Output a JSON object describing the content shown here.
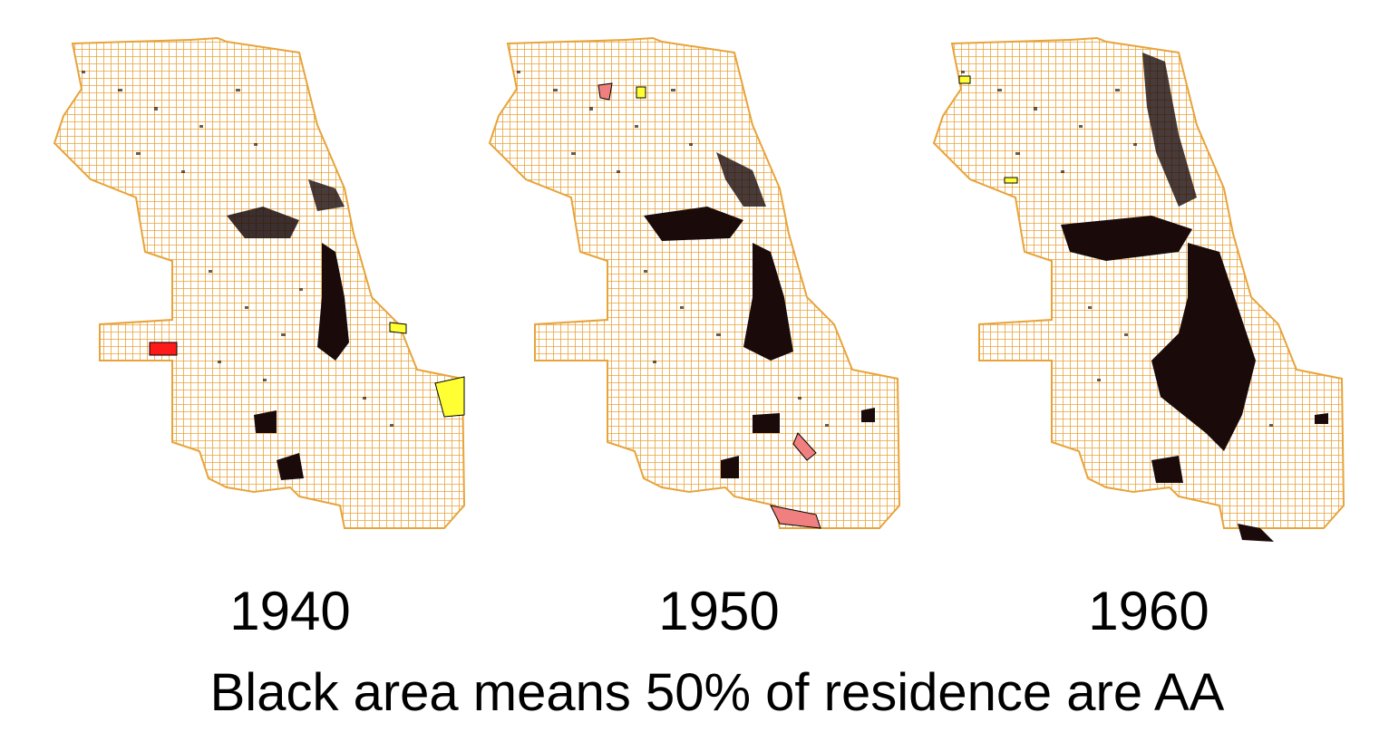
{
  "maps": [
    {
      "year": "1940",
      "zones": [
        "north-west-cluster",
        "west-side-cluster",
        "south-side-belt",
        "far-south-pocket"
      ],
      "highlights": [
        "red-west",
        "yellow-lakefront",
        "yellow-southeast"
      ]
    },
    {
      "year": "1950",
      "zones": [
        "north-west-cluster",
        "west-side-cluster",
        "south-side-belt",
        "far-south-pocket",
        "southeast-pocket"
      ],
      "highlights": [
        "pink-north",
        "yellow-north",
        "pink-south",
        "pink-far-south"
      ]
    },
    {
      "year": "1960",
      "zones": [
        "north-side-belt",
        "west-side-cluster",
        "south-side-belt",
        "far-south-pocket",
        "southeast-pocket"
      ],
      "highlights": [
        "yellow-north",
        "yellow-central"
      ]
    }
  ],
  "caption": "Black area means 50% of residence are AA",
  "colors": {
    "streets": "#e8a33a",
    "black_area": "#1a0a0a",
    "red": "#ff1a1a",
    "yellow": "#ffff33",
    "pink": "#f08080"
  }
}
